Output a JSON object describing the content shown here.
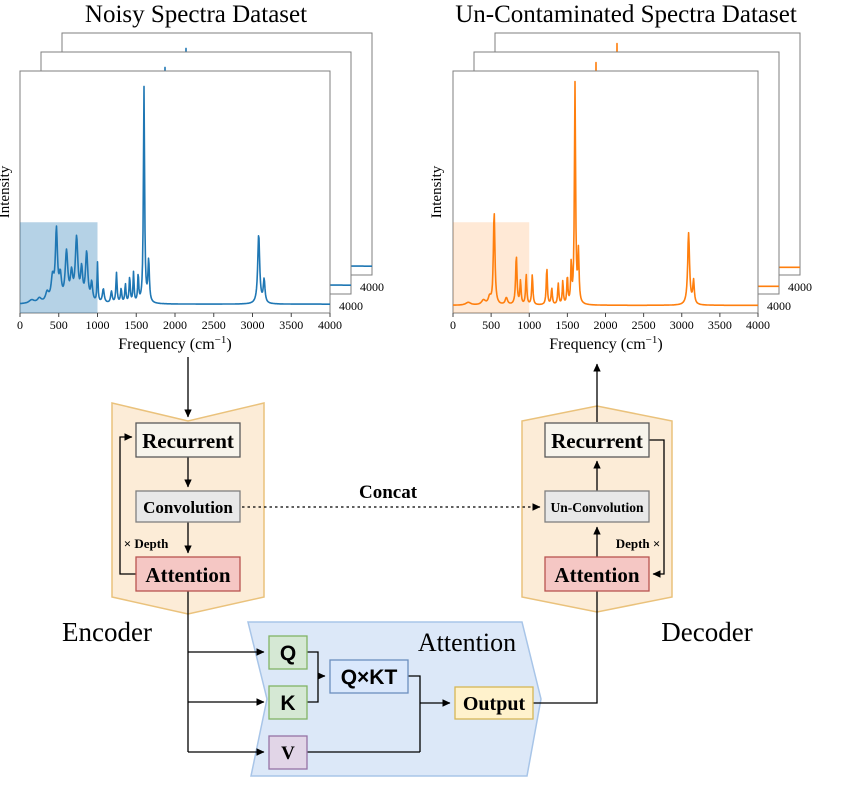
{
  "figure": {
    "plots": {
      "left": {
        "title": "Noisy Spectra Dataset",
        "ylabel": "Intensity",
        "xlabel_prefix": "Frequency (cm",
        "xlabel_sup": "−1",
        "xlabel_suffix": ")",
        "stack_tick_label": "4000"
      },
      "right": {
        "title": "Un-Contaminated Spectra Dataset",
        "ylabel": "Intensity",
        "xlabel_prefix": "Frequency (cm",
        "xlabel_sup": "−1",
        "xlabel_suffix": ")",
        "stack_tick_label": "4000"
      }
    },
    "encoder": {
      "label": "Encoder",
      "boxes": {
        "recurrent": "Recurrent",
        "convolution": "Convolution",
        "attention": "Attention"
      },
      "depth_label": "× Depth"
    },
    "decoder": {
      "label": "Decoder",
      "boxes": {
        "recurrent": "Recurrent",
        "convolution": "Un-Convolution",
        "attention": "Attention"
      },
      "depth_label": "Depth ×"
    },
    "concat_label": "Concat",
    "attention_block": {
      "label": "Attention",
      "q_label": "Q",
      "k_label": "K",
      "v_label": "V",
      "qkt_label": "Q×KT",
      "output_label": "Output"
    }
  },
  "chart_data": [
    {
      "type": "line",
      "title": "Noisy Spectra Dataset",
      "xlabel": "Frequency (cm⁻¹)",
      "ylabel": "Intensity",
      "xlim": [
        0,
        4000
      ],
      "x_ticks": [
        0,
        500,
        1000,
        1500,
        2000,
        2500,
        3000,
        3500,
        4000
      ],
      "line_color": "#1f77b4",
      "highlight_region": {
        "x_range": [
          0,
          1000
        ],
        "color": "rgba(31,119,180,0.33)"
      },
      "stacked_frames": 3,
      "grid": false,
      "baseline": 0.025,
      "peaks": [
        [
          150,
          0.015,
          40
        ],
        [
          250,
          0.02,
          30
        ],
        [
          350,
          0.04,
          25
        ],
        [
          420,
          0.1,
          22
        ],
        [
          470,
          0.3,
          16
        ],
        [
          520,
          0.1,
          18
        ],
        [
          600,
          0.21,
          20
        ],
        [
          665,
          0.11,
          18
        ],
        [
          730,
          0.27,
          20
        ],
        [
          795,
          0.13,
          16
        ],
        [
          860,
          0.21,
          18
        ],
        [
          925,
          0.08,
          14
        ],
        [
          1000,
          0.17,
          7
        ],
        [
          1075,
          0.06,
          14
        ],
        [
          1180,
          0.05,
          12
        ],
        [
          1245,
          0.13,
          9
        ],
        [
          1305,
          0.06,
          10
        ],
        [
          1360,
          0.08,
          9
        ],
        [
          1415,
          0.11,
          9
        ],
        [
          1465,
          0.13,
          8
        ],
        [
          1525,
          0.12,
          8
        ],
        [
          1600,
          0.93,
          9
        ],
        [
          1660,
          0.18,
          11
        ],
        [
          3080,
          0.3,
          15
        ],
        [
          3150,
          0.1,
          13
        ]
      ]
    },
    {
      "type": "line",
      "title": "Un-Contaminated Spectra Dataset",
      "xlabel": "Frequency (cm⁻¹)",
      "ylabel": "Intensity",
      "xlim": [
        0,
        4000
      ],
      "x_ticks": [
        0,
        500,
        1000,
        1500,
        2000,
        2500,
        3000,
        3500,
        4000
      ],
      "line_color": "#ff7f0e",
      "highlight_region": {
        "x_range": [
          0,
          1000
        ],
        "color": "rgba(255,127,14,0.17)"
      },
      "stacked_frames": 3,
      "grid": false,
      "baseline": 0.02,
      "peaks": [
        [
          200,
          0.012,
          40
        ],
        [
          400,
          0.02,
          30
        ],
        [
          480,
          0.03,
          20
        ],
        [
          540,
          0.4,
          12
        ],
        [
          700,
          0.03,
          18
        ],
        [
          830,
          0.21,
          11
        ],
        [
          885,
          0.1,
          9
        ],
        [
          960,
          0.13,
          9
        ],
        [
          1040,
          0.13,
          9
        ],
        [
          1230,
          0.16,
          9
        ],
        [
          1295,
          0.07,
          9
        ],
        [
          1380,
          0.09,
          9
        ],
        [
          1440,
          0.1,
          8
        ],
        [
          1500,
          0.12,
          8
        ],
        [
          1550,
          0.17,
          8
        ],
        [
          1600,
          0.95,
          9
        ],
        [
          1645,
          0.22,
          10
        ],
        [
          3090,
          0.31,
          15
        ],
        [
          3155,
          0.1,
          12
        ]
      ]
    }
  ]
}
